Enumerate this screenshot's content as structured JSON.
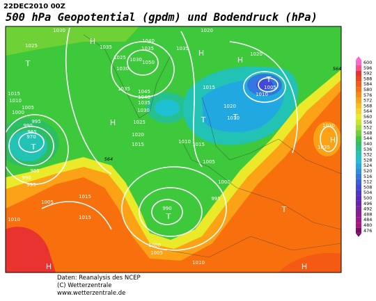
{
  "header": {
    "date": "22DEC2010 00Z",
    "title": "500 hPa Geopotential (gpdm) und Bodendruck (hPa)"
  },
  "colorbar": {
    "labels": [
      600,
      596,
      592,
      588,
      584,
      580,
      576,
      572,
      568,
      564,
      560,
      556,
      552,
      548,
      544,
      540,
      536,
      532,
      528,
      524,
      520,
      516,
      512,
      508,
      504,
      500,
      496,
      492,
      488,
      484,
      480,
      476
    ],
    "colors": [
      "#ff66cc",
      "#ff4d88",
      "#e8332e",
      "#f0441e",
      "#f55a14",
      "#f8700e",
      "#fa8a0e",
      "#fba216",
      "#fcbb1e",
      "#f8d226",
      "#eaea2a",
      "#c8e42c",
      "#a0dc30",
      "#6ed236",
      "#3ec83c",
      "#2ebe62",
      "#26c08e",
      "#22c2b4",
      "#20c0d4",
      "#22a8e0",
      "#2a8ee2",
      "#3276e0",
      "#3a5ee0",
      "#4248d8",
      "#4a36cc",
      "#5a2ac0",
      "#6c22b0",
      "#7e1ea0",
      "#8e1a94",
      "#a01688",
      "#b0147c",
      "#7a0a6a"
    ]
  },
  "map": {
    "isobar_labels": [
      "1030",
      "1020",
      "1025",
      "1035",
      "1040",
      "1035",
      "1030",
      "1035",
      "1025",
      "1030",
      "1050",
      "1020",
      "1015",
      "1015",
      "1010",
      "1005",
      "1000",
      "995",
      "990",
      "985",
      "970",
      "1035",
      "1045",
      "1040",
      "1035",
      "1030",
      "1025",
      "1020",
      "1015",
      "1005",
      "1010",
      "1010",
      "1010",
      "1015",
      "1005",
      "1000",
      "995",
      "990",
      "1015",
      "1005",
      "1010",
      "1015",
      "1000",
      "1005",
      "1010",
      "985",
      "990",
      "995",
      "1030",
      "1035",
      "1020"
    ],
    "pressure_centers": [
      "H",
      "T",
      "H",
      "H",
      "T",
      "H",
      "T",
      "T",
      "T",
      "H",
      "T",
      "T",
      "H",
      "H"
    ],
    "contour_labels": [
      "564",
      "564"
    ]
  },
  "footer": {
    "lines": [
      "Daten: Reanalysis des NCEP",
      "(C) Wetterzentrale",
      "www.wetterzentrale.de"
    ]
  }
}
